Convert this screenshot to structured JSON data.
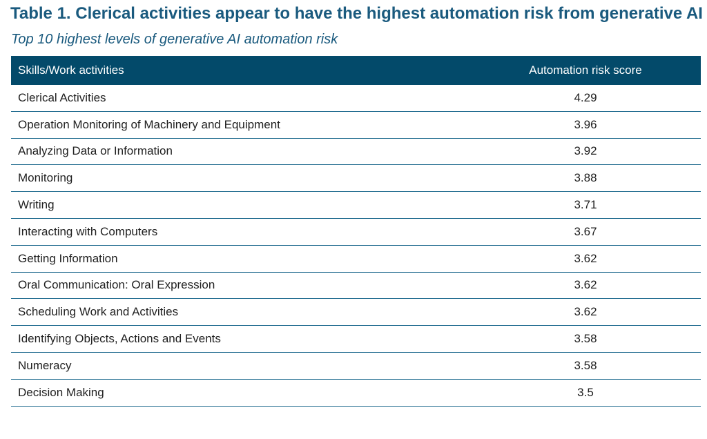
{
  "title": "Table 1. Clerical activities appear to have the highest automation risk from generative AI",
  "subtitle": "Top 10 highest levels of generative AI automation risk",
  "colors": {
    "title": "#1a5a7e",
    "header_bg": "#034a6a",
    "row_rule": "#1e6a8e"
  },
  "chart_data": {
    "type": "table",
    "title": "Table 1. Clerical activities appear to have the highest automation risk from generative AI",
    "subtitle": "Top 10 highest levels of generative AI automation risk",
    "columns": [
      "Skills/Work activities",
      "Automation risk score"
    ],
    "rows": [
      {
        "skill": "Clerical Activities",
        "score": "4.29"
      },
      {
        "skill": "Operation Monitoring of Machinery and Equipment",
        "score": "3.96"
      },
      {
        "skill": "Analyzing Data or Information",
        "score": "3.92"
      },
      {
        "skill": "Monitoring",
        "score": "3.88"
      },
      {
        "skill": "Writing",
        "score": "3.71"
      },
      {
        "skill": "Interacting with Computers",
        "score": "3.67"
      },
      {
        "skill": "Getting Information",
        "score": "3.62"
      },
      {
        "skill": "Oral Communication: Oral Expression",
        "score": "3.62"
      },
      {
        "skill": "Scheduling Work and Activities",
        "score": "3.62"
      },
      {
        "skill": "Identifying Objects, Actions and Events",
        "score": "3.58"
      },
      {
        "skill": "Numeracy",
        "score": "3.58"
      },
      {
        "skill": "Decision Making",
        "score": "3.5"
      }
    ]
  }
}
